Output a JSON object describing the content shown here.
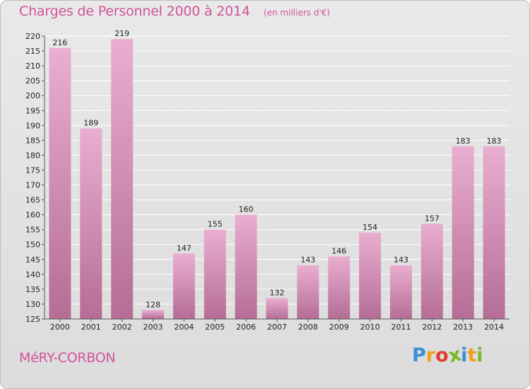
{
  "header": {
    "title": "Charges de Personnel 2000 à 2014",
    "subtitle": "(en milliers d'€)"
  },
  "footer": {
    "commune": "MéRY-CORBON",
    "logo_letters": [
      "P",
      "r",
      "o",
      "x",
      "i",
      "t",
      "i"
    ]
  },
  "colors": {
    "text_accent": "#d0559a",
    "bar_light": "#e9aed0",
    "bar_dark": "#b56d96",
    "logo": [
      "#3a8fd6",
      "#f0a020",
      "#e03c2c",
      "#7ab828",
      "#3a8fd6",
      "#f0a020",
      "#7ab828"
    ]
  },
  "chart_data": {
    "type": "bar",
    "title": "Charges de Personnel 2000 à 2014",
    "subtitle": "(en milliers d'€)",
    "categories": [
      "2000",
      "2001",
      "2002",
      "2003",
      "2004",
      "2005",
      "2006",
      "2007",
      "2008",
      "2009",
      "2010",
      "2011",
      "2012",
      "2013",
      "2014"
    ],
    "values": [
      216,
      189,
      219,
      128,
      147,
      155,
      160,
      132,
      143,
      146,
      154,
      143,
      157,
      183,
      183
    ],
    "ylim": [
      125,
      220
    ],
    "yticks": [
      125,
      130,
      135,
      140,
      145,
      150,
      155,
      160,
      165,
      170,
      175,
      180,
      185,
      190,
      195,
      200,
      205,
      210,
      215,
      220
    ],
    "grid": true,
    "legend": "none"
  }
}
